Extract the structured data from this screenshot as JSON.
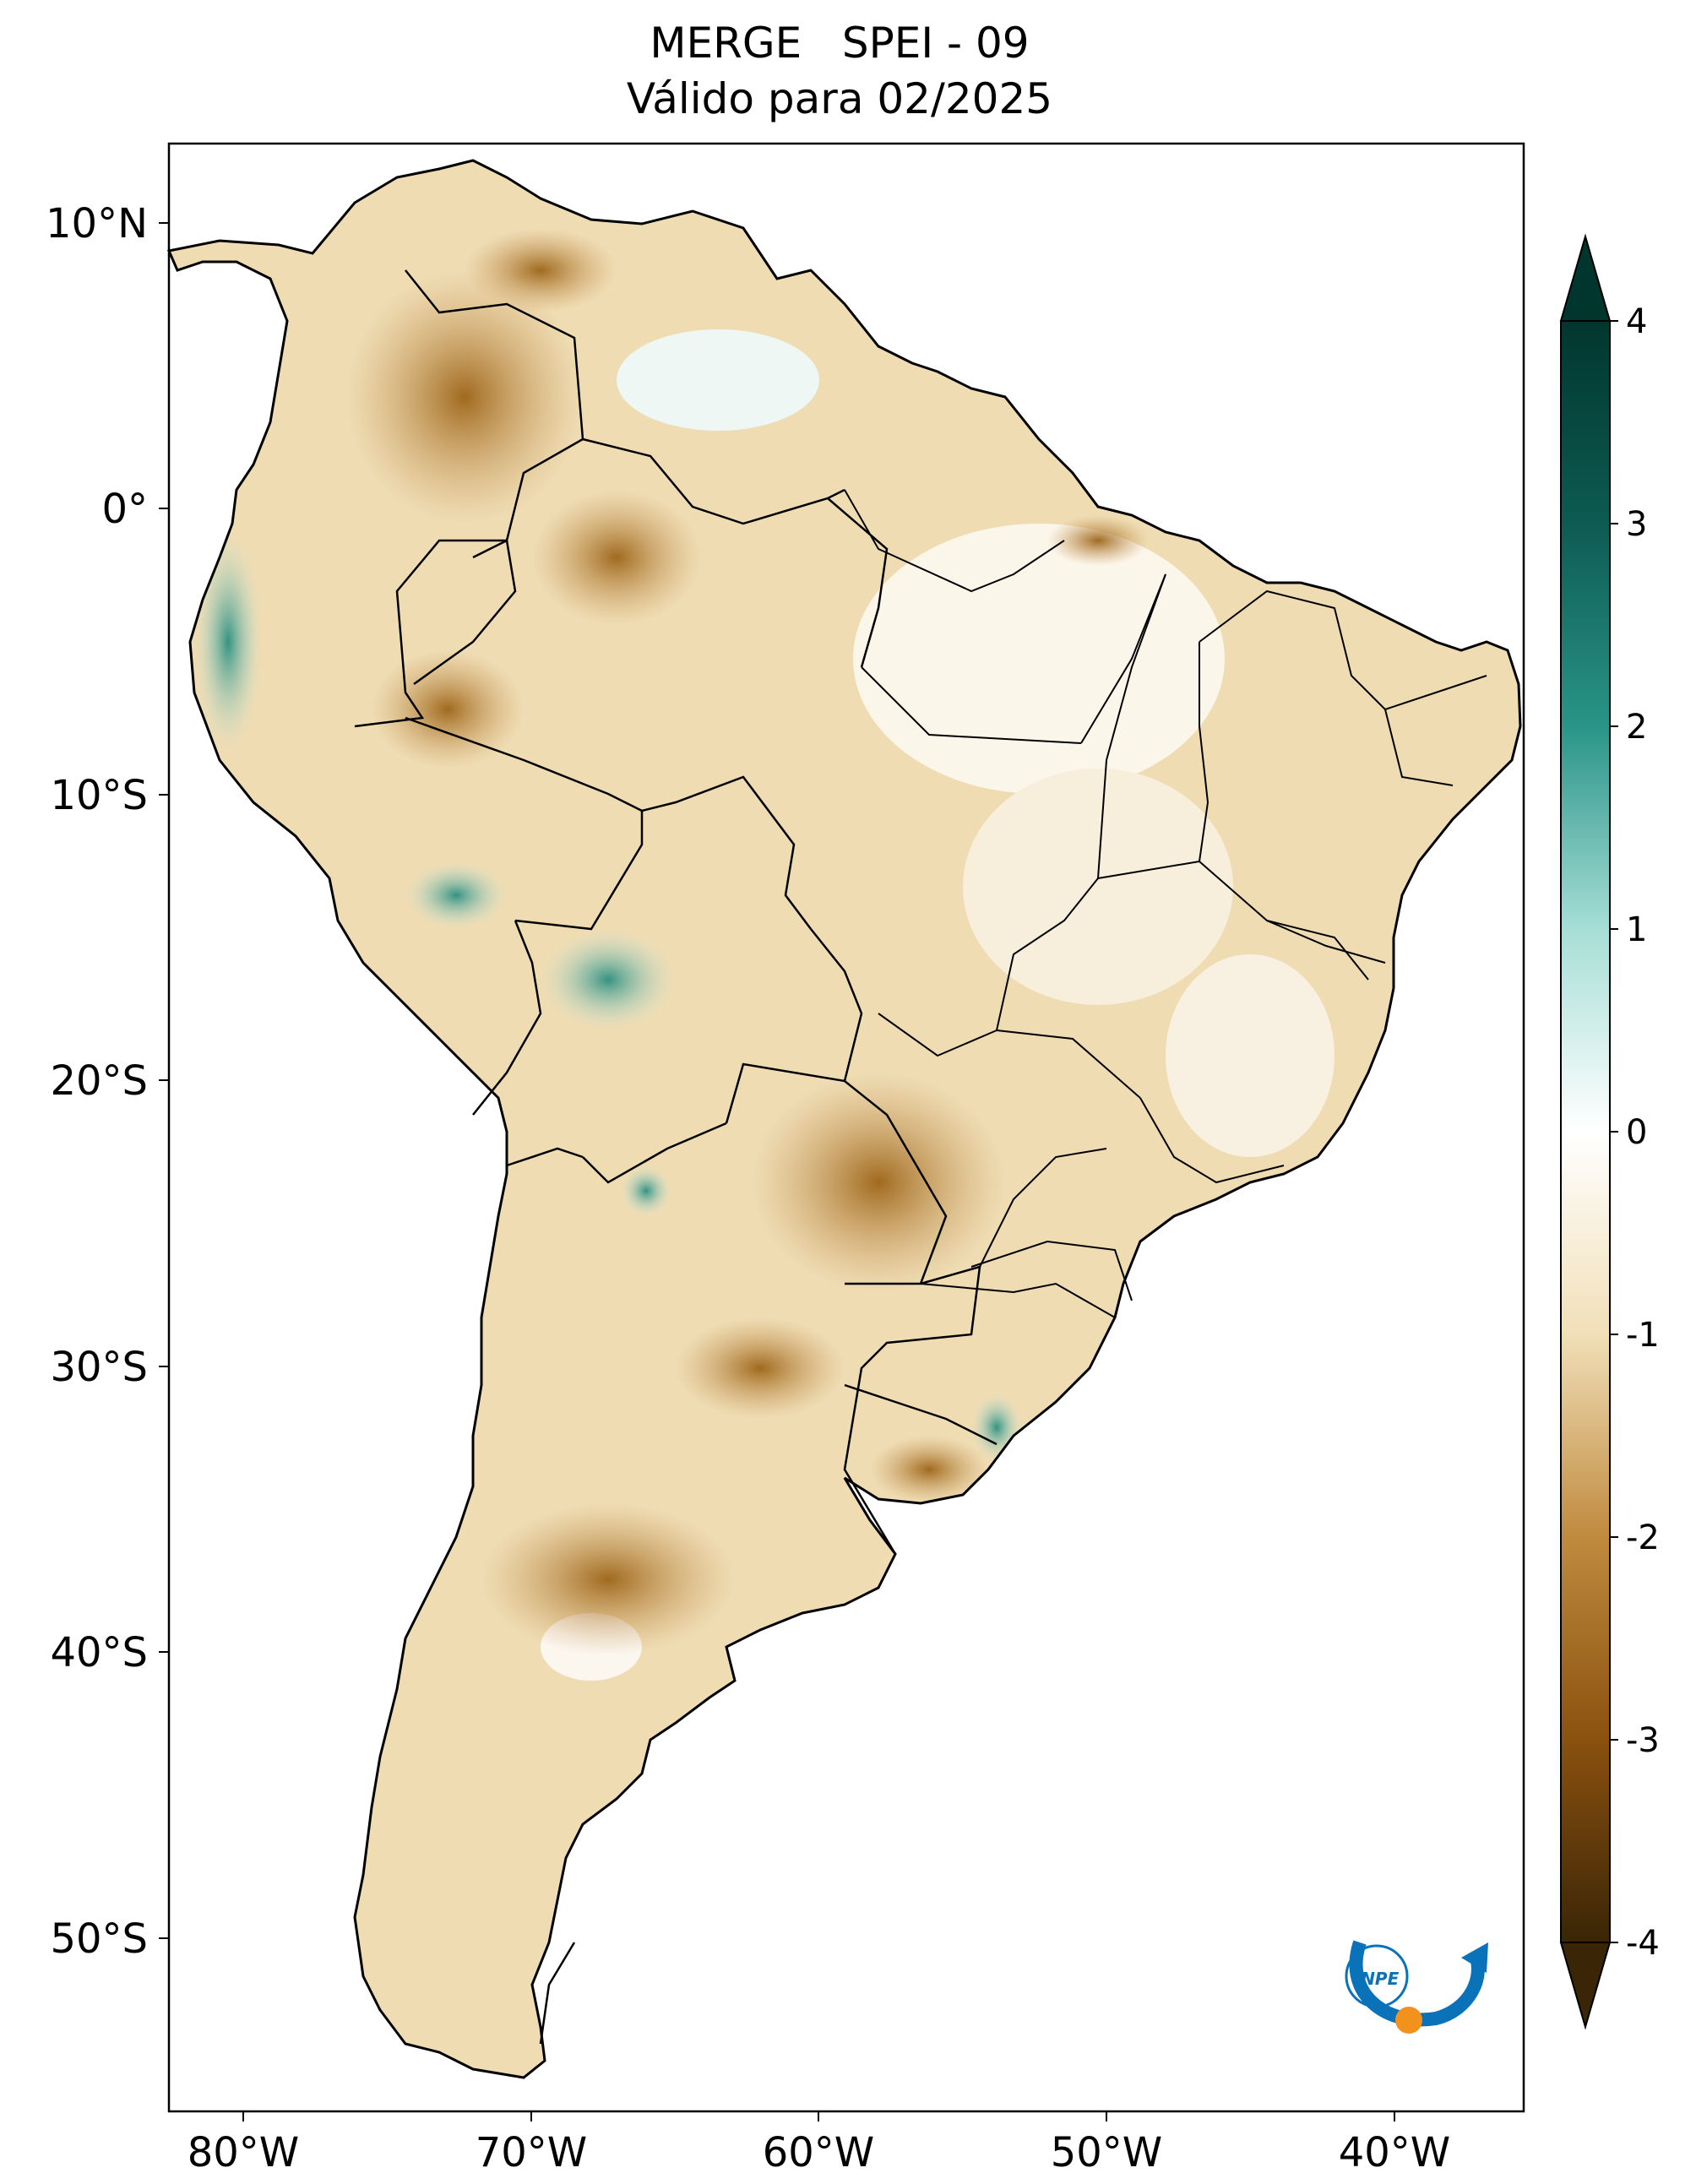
{
  "title": {
    "line1": "MERGE   SPEI - 09",
    "line2": "Válido para 02/2025"
  },
  "axes": {
    "lat_ticks": [
      "10°N",
      "0°",
      "10°S",
      "20°S",
      "30°S",
      "40°S",
      "50°S"
    ],
    "lon_ticks": [
      "80°W",
      "70°W",
      "60°W",
      "50°W",
      "40°W"
    ],
    "lat_range": [
      12.5,
      -56.3
    ],
    "lon_range": [
      -81.0,
      -34.7
    ]
  },
  "colorbar": {
    "ticks": [
      "4",
      "3",
      "2",
      "1",
      "0",
      "-1",
      "-2",
      "-3",
      "-4"
    ],
    "range": [
      -4,
      4
    ],
    "colors": {
      "wet_extreme": "#01362e",
      "wet": "#2a9488",
      "neutral": "#ffffff",
      "dry": "#c08a3e",
      "dry_extreme": "#3a2506"
    }
  },
  "logo": {
    "text": "INPE",
    "icon": "inpe-logo-icon"
  }
}
